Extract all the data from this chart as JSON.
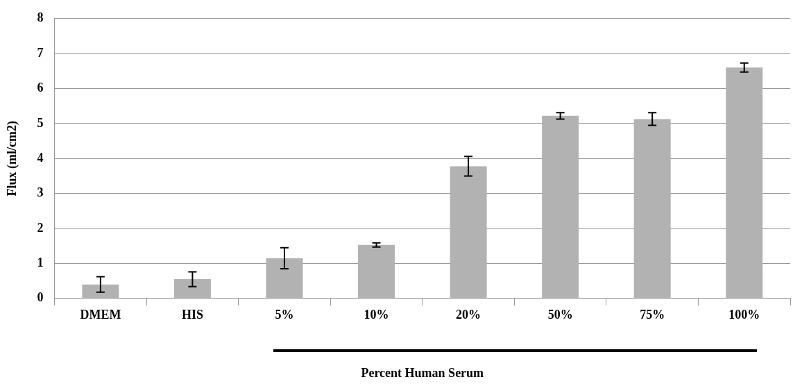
{
  "chart_data": {
    "type": "bar",
    "xlabel": "Percent Human Serum",
    "ylabel": "Flux (ml/cm2)",
    "categories": [
      "DMEM",
      "HIS",
      "5%",
      "10%",
      "20%",
      "50%",
      "75%",
      "100%"
    ],
    "values": [
      0.4,
      0.55,
      1.15,
      1.53,
      3.78,
      5.22,
      5.13,
      6.6
    ],
    "errors": [
      0.22,
      0.21,
      0.3,
      0.06,
      0.28,
      0.09,
      0.18,
      0.13
    ],
    "color": "#b2b2b2",
    "ylim": [
      0,
      8
    ],
    "yticks": [
      0,
      1,
      2,
      3,
      4,
      5,
      6,
      7,
      8
    ],
    "grid": "y",
    "legend": false
  }
}
